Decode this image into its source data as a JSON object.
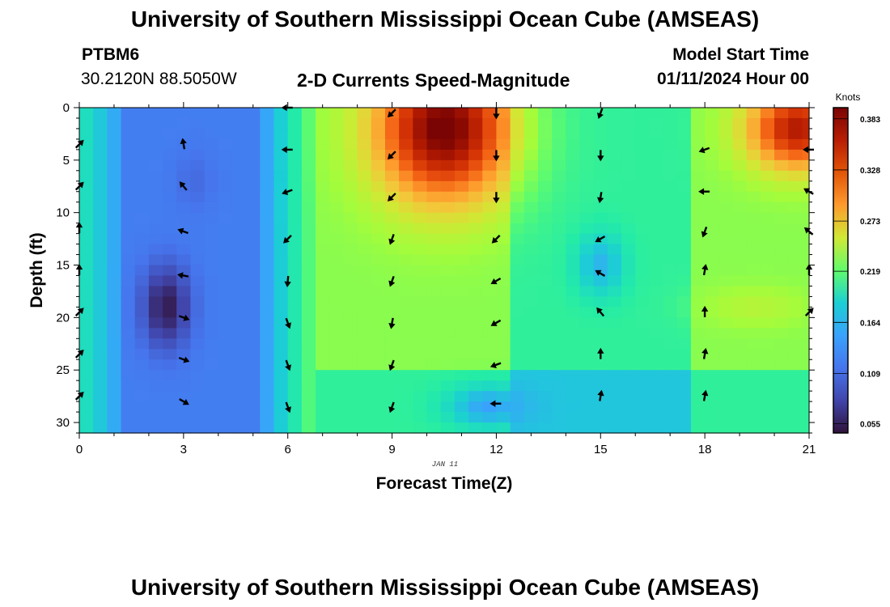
{
  "header": {
    "title": "University of Southern Mississippi Ocean Cube (AMSEAS)",
    "station_id": "PTBM6",
    "coordinates": "30.2120N  88.5050W",
    "plot_title": "2-D Currents Speed-Magnitude",
    "model_start_label": "Model Start Time",
    "model_start_value": "01/11/2024 Hour 00"
  },
  "footer": {
    "title": "University of Southern Mississippi Ocean Cube (AMSEAS)"
  },
  "chart_data": {
    "type": "heatmap",
    "title": "2-D Currents Speed-Magnitude",
    "xlabel": "Forecast Time(Z)",
    "ylabel": "Depth (ft)",
    "date_label": "JAN 11",
    "x_ticks": [
      0,
      3,
      6,
      9,
      12,
      15,
      18,
      21
    ],
    "y_ticks": [
      0,
      5,
      10,
      15,
      20,
      25,
      30
    ],
    "xlim": [
      0,
      21
    ],
    "ylim": [
      0,
      31
    ],
    "colorbar": {
      "label": "Knots",
      "ticks": [
        "0.383",
        "0.328",
        "0.273",
        "0.219",
        "0.164",
        "0.109",
        "0.055"
      ],
      "range": [
        0.045,
        0.395
      ]
    },
    "speed_cores": [
      {
        "t": 2.5,
        "d": 19,
        "v": 0.05,
        "st": 0.7,
        "sd": 4.0
      },
      {
        "t": 3.3,
        "d": 7,
        "v": 0.09,
        "st": 0.6,
        "sd": 3.0
      },
      {
        "t": 10.5,
        "d": 2,
        "v": 0.4,
        "st": 2.0,
        "sd": 7.0
      },
      {
        "t": 20.7,
        "d": 2,
        "v": 0.37,
        "st": 1.5,
        "sd": 4.0
      },
      {
        "t": 19.5,
        "d": 19,
        "v": 0.23,
        "st": 1.5,
        "sd": 2.0
      },
      {
        "t": 15.0,
        "d": 15,
        "v": 0.13,
        "st": 0.7,
        "sd": 3.0
      },
      {
        "t": 11.8,
        "d": 28.5,
        "v": 0.12,
        "st": 1.2,
        "sd": 2.0
      }
    ],
    "current_vectors": [
      {
        "t": 0,
        "d": 3.5,
        "dir": 45
      },
      {
        "t": 0,
        "d": 7.5,
        "dir": 45
      },
      {
        "t": 0,
        "d": 11.5,
        "dir": 0
      },
      {
        "t": 0,
        "d": 15.5,
        "dir": 0
      },
      {
        "t": 0,
        "d": 19.5,
        "dir": 45
      },
      {
        "t": 0,
        "d": 23.5,
        "dir": 45
      },
      {
        "t": 0,
        "d": 27.5,
        "dir": 45
      },
      {
        "t": 3,
        "d": 3.5,
        "dir": 350
      },
      {
        "t": 3,
        "d": 7.5,
        "dir": 320
      },
      {
        "t": 3,
        "d": 11.8,
        "dir": 290
      },
      {
        "t": 3,
        "d": 16,
        "dir": 280
      },
      {
        "t": 3,
        "d": 20,
        "dir": 110
      },
      {
        "t": 3,
        "d": 24,
        "dir": 110
      },
      {
        "t": 3,
        "d": 28,
        "dir": 120
      },
      {
        "t": 6,
        "d": 0,
        "dir": 270
      },
      {
        "t": 6,
        "d": 4,
        "dir": 270
      },
      {
        "t": 6,
        "d": 8,
        "dir": 250
      },
      {
        "t": 6,
        "d": 12.5,
        "dir": 225
      },
      {
        "t": 6,
        "d": 16.5,
        "dir": 185
      },
      {
        "t": 6,
        "d": 20.5,
        "dir": 160
      },
      {
        "t": 6,
        "d": 24.5,
        "dir": 160
      },
      {
        "t": 6,
        "d": 28.5,
        "dir": 160
      },
      {
        "t": 9,
        "d": 0.5,
        "dir": 225
      },
      {
        "t": 9,
        "d": 4.5,
        "dir": 225
      },
      {
        "t": 9,
        "d": 8.5,
        "dir": 225
      },
      {
        "t": 9,
        "d": 12.5,
        "dir": 200
      },
      {
        "t": 9,
        "d": 16.5,
        "dir": 200
      },
      {
        "t": 9,
        "d": 20.5,
        "dir": 190
      },
      {
        "t": 9,
        "d": 24.5,
        "dir": 200
      },
      {
        "t": 9,
        "d": 28.5,
        "dir": 200
      },
      {
        "t": 12,
        "d": 0.5,
        "dir": 180
      },
      {
        "t": 12,
        "d": 4.5,
        "dir": 180
      },
      {
        "t": 12,
        "d": 8.5,
        "dir": 180
      },
      {
        "t": 12,
        "d": 12.5,
        "dir": 225
      },
      {
        "t": 12,
        "d": 16.5,
        "dir": 240
      },
      {
        "t": 12,
        "d": 20.5,
        "dir": 240
      },
      {
        "t": 12,
        "d": 24.5,
        "dir": 250
      },
      {
        "t": 12,
        "d": 28.2,
        "dir": 270
      },
      {
        "t": 15,
        "d": 0.5,
        "dir": 200
      },
      {
        "t": 15,
        "d": 4.5,
        "dir": 180
      },
      {
        "t": 15,
        "d": 8.5,
        "dir": 190
      },
      {
        "t": 15,
        "d": 12.5,
        "dir": 240
      },
      {
        "t": 15,
        "d": 15.8,
        "dir": 300
      },
      {
        "t": 15,
        "d": 19.5,
        "dir": 320
      },
      {
        "t": 15,
        "d": 23.5,
        "dir": 0
      },
      {
        "t": 15,
        "d": 27.5,
        "dir": 10
      },
      {
        "t": 18,
        "d": 4,
        "dir": 250
      },
      {
        "t": 18,
        "d": 8,
        "dir": 270
      },
      {
        "t": 18,
        "d": 11.8,
        "dir": 200
      },
      {
        "t": 18,
        "d": 15.5,
        "dir": 10
      },
      {
        "t": 18,
        "d": 19.5,
        "dir": 0
      },
      {
        "t": 18,
        "d": 23.5,
        "dir": 10
      },
      {
        "t": 18,
        "d": 27.5,
        "dir": 10
      },
      {
        "t": 21,
        "d": 4,
        "dir": 270
      },
      {
        "t": 21,
        "d": 8,
        "dir": 300
      },
      {
        "t": 21,
        "d": 11.8,
        "dir": 310
      },
      {
        "t": 21,
        "d": 15.5,
        "dir": 0
      },
      {
        "t": 21,
        "d": 19.5,
        "dir": 45
      }
    ]
  }
}
